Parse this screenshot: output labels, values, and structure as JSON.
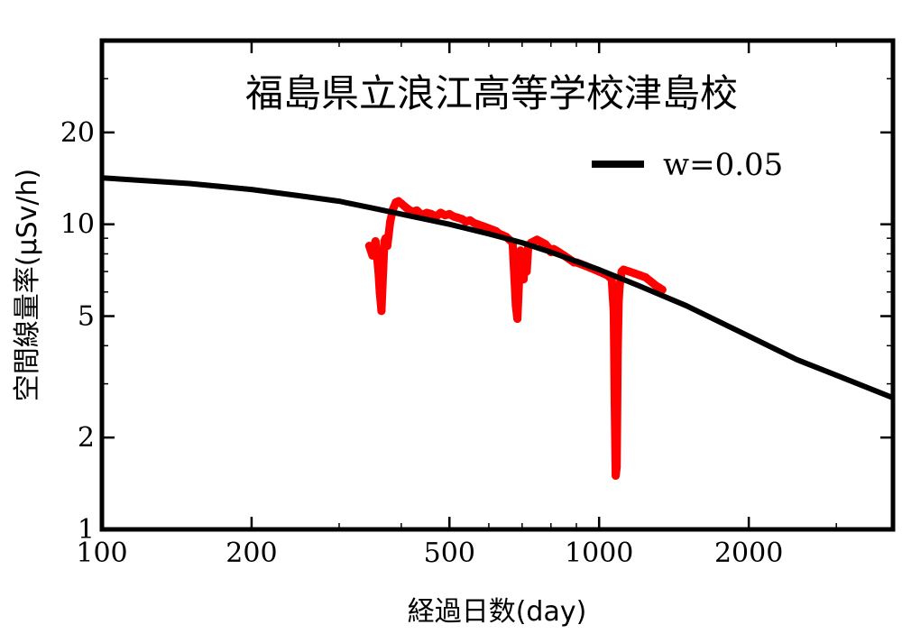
{
  "chart_data": {
    "type": "line",
    "title": "福島県立浪江高等学校津島校",
    "xlabel": "経過日数(day)",
    "ylabel": "空間線量率(μSv/h)",
    "xscale": "log",
    "yscale": "log",
    "xlim": [
      100,
      3900
    ],
    "ylim": [
      1,
      40
    ],
    "xticks": [
      100,
      200,
      500,
      1000,
      2000
    ],
    "xtick_labels": [
      "100",
      "200",
      "500",
      "1000",
      "2000"
    ],
    "yticks": [
      1,
      2,
      5,
      10,
      20
    ],
    "ytick_labels": [
      "1",
      "2",
      "5",
      "10",
      "20"
    ],
    "grid": false,
    "legend_position": "top-right",
    "colors": {
      "model": "#000000",
      "measured": "#ff0000"
    },
    "series": [
      {
        "name": "w=0.05",
        "kind": "line",
        "x": [
          100,
          150,
          200,
          250,
          300,
          350,
          400,
          500,
          600,
          700,
          800,
          1000,
          1200,
          1500,
          2000,
          2500,
          3000,
          3900
        ],
        "y": [
          14.2,
          13.6,
          13.0,
          12.4,
          11.9,
          11.3,
          10.8,
          10.0,
          9.3,
          8.7,
          8.1,
          7.1,
          6.3,
          5.4,
          4.3,
          3.6,
          3.2,
          2.7
        ]
      },
      {
        "kind": "measured",
        "x": [
          345,
          350,
          355,
          360,
          362,
          365,
          368,
          370,
          372,
          375,
          380,
          385,
          390,
          395,
          400,
          410,
          420,
          430,
          440,
          450,
          460,
          470,
          480,
          490,
          500,
          510,
          520,
          530,
          540,
          550,
          560,
          570,
          580,
          590,
          600,
          610,
          620,
          630,
          640,
          650,
          660,
          670,
          680,
          685,
          690,
          695,
          700,
          705,
          710,
          715,
          720,
          725,
          730,
          740,
          750,
          760,
          770,
          780,
          790,
          800,
          810,
          820,
          830,
          840,
          850,
          860,
          870,
          880,
          890,
          900,
          920,
          940,
          960,
          980,
          1000,
          1020,
          1040,
          1060,
          1070,
          1075,
          1080,
          1085,
          1090,
          1095,
          1100,
          1110,
          1120,
          1150,
          1180,
          1210,
          1240,
          1270,
          1300,
          1320,
          1340
        ],
        "y": [
          8.5,
          7.9,
          8.8,
          7.0,
          6.0,
          5.2,
          7.2,
          8.8,
          9.0,
          8.5,
          10.2,
          11.2,
          11.8,
          11.9,
          11.7,
          11.3,
          11.0,
          11.1,
          10.7,
          10.9,
          10.8,
          10.6,
          10.9,
          10.7,
          10.8,
          10.6,
          10.5,
          10.4,
          10.2,
          10.3,
          10.1,
          10.0,
          9.9,
          9.8,
          9.7,
          9.6,
          9.5,
          9.3,
          9.2,
          9.1,
          8.9,
          8.7,
          5.4,
          4.9,
          6.5,
          8.2,
          7.8,
          6.6,
          8.1,
          7.0,
          8.4,
          8.6,
          8.7,
          8.8,
          8.9,
          8.8,
          8.7,
          8.6,
          8.4,
          8.1,
          8.3,
          8.2,
          8.1,
          8.0,
          7.9,
          7.8,
          7.7,
          7.6,
          7.5,
          7.5,
          7.4,
          7.3,
          7.2,
          7.1,
          7.0,
          6.9,
          6.8,
          6.6,
          5.2,
          2.6,
          1.5,
          1.6,
          3.8,
          5.6,
          6.3,
          7.0,
          7.1,
          7.0,
          6.9,
          6.8,
          6.7,
          6.5,
          6.3,
          6.2,
          6.1
        ]
      }
    ]
  }
}
